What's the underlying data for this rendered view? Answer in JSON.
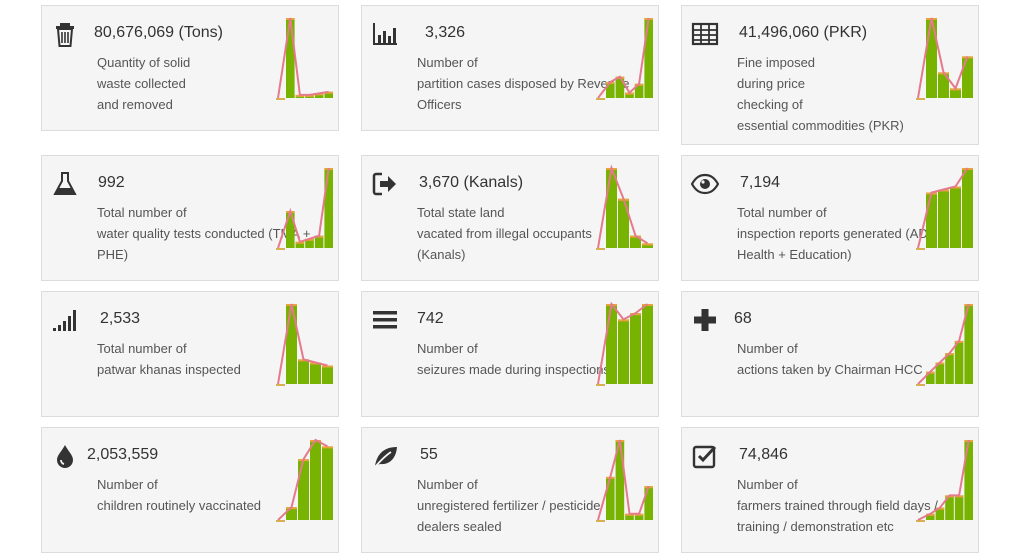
{
  "colors": {
    "bar": "#77b300",
    "bar_cap": "#e8a33a",
    "line": "#e57a8c",
    "base": "#d9b050"
  },
  "cards": [
    {
      "icon": "trash-icon",
      "value": "80,676,069 (Tons)",
      "lines": [
        "Quantity of solid",
        "waste collected",
        "and removed"
      ],
      "spark": [
        52,
        2,
        2,
        3,
        4
      ]
    },
    {
      "icon": "bar-chart-icon",
      "value": "3,326",
      "lines": [
        "Number of",
        "partition cases disposed by Revenue",
        "Officers"
      ],
      "spark": [
        18,
        24,
        6,
        16,
        90
      ]
    },
    {
      "icon": "table-icon",
      "value": "41,496,060 (PKR)",
      "lines": [
        "Fine imposed",
        "during price",
        "checking of",
        "essential commodities (PKR)"
      ],
      "spark": [
        50,
        16,
        6,
        26
      ]
    },
    {
      "icon": "flask-icon",
      "value": "992",
      "lines": [
        "Total number of",
        "water quality tests conducted (TMA +",
        "PHE)"
      ],
      "spark": [
        24,
        4,
        6,
        8,
        52
      ]
    },
    {
      "icon": "sign-in-icon",
      "value": "3,670 (Kanals)",
      "lines": [
        "Total state land",
        "vacated from illegal occupants",
        "(Kanals)"
      ],
      "spark": [
        52,
        32,
        8,
        3
      ]
    },
    {
      "icon": "eye-icon",
      "value": "7,194",
      "lines": [
        "Total number of",
        "inspection reports generated (ADP +",
        "Health + Education)"
      ],
      "spark": [
        36,
        38,
        40,
        52
      ]
    },
    {
      "icon": "signal-icon",
      "value": "2,533",
      "lines": [
        "Total number of",
        "patwar khanas inspected"
      ],
      "spark": [
        52,
        16,
        14,
        12
      ]
    },
    {
      "icon": "list-icon",
      "value": "742",
      "lines": [
        "Number of",
        "seizures made during inspections"
      ],
      "spark": [
        52,
        42,
        46,
        52
      ]
    },
    {
      "icon": "plus-icon",
      "value": "68",
      "lines": [
        "Number of",
        "actions taken by Chairman HCC"
      ],
      "spark": [
        8,
        14,
        20,
        28,
        52
      ]
    },
    {
      "icon": "tint-icon",
      "value": "2,053,559",
      "lines": [
        "Number of",
        "children routinely vaccinated"
      ],
      "spark": [
        8,
        38,
        50,
        46
      ]
    },
    {
      "icon": "leaf-icon",
      "value": "55",
      "lines": [
        "Number of",
        "unregistered fertilizer / pesticide",
        "dealers sealed"
      ],
      "spark": [
        28,
        52,
        4,
        4,
        22
      ]
    },
    {
      "icon": "check-square-icon",
      "value": "74,846",
      "lines": [
        "Number of",
        "farmers trained through field days /",
        "training / demonstration etc"
      ],
      "spark": [
        4,
        8,
        16,
        16,
        52
      ]
    }
  ]
}
